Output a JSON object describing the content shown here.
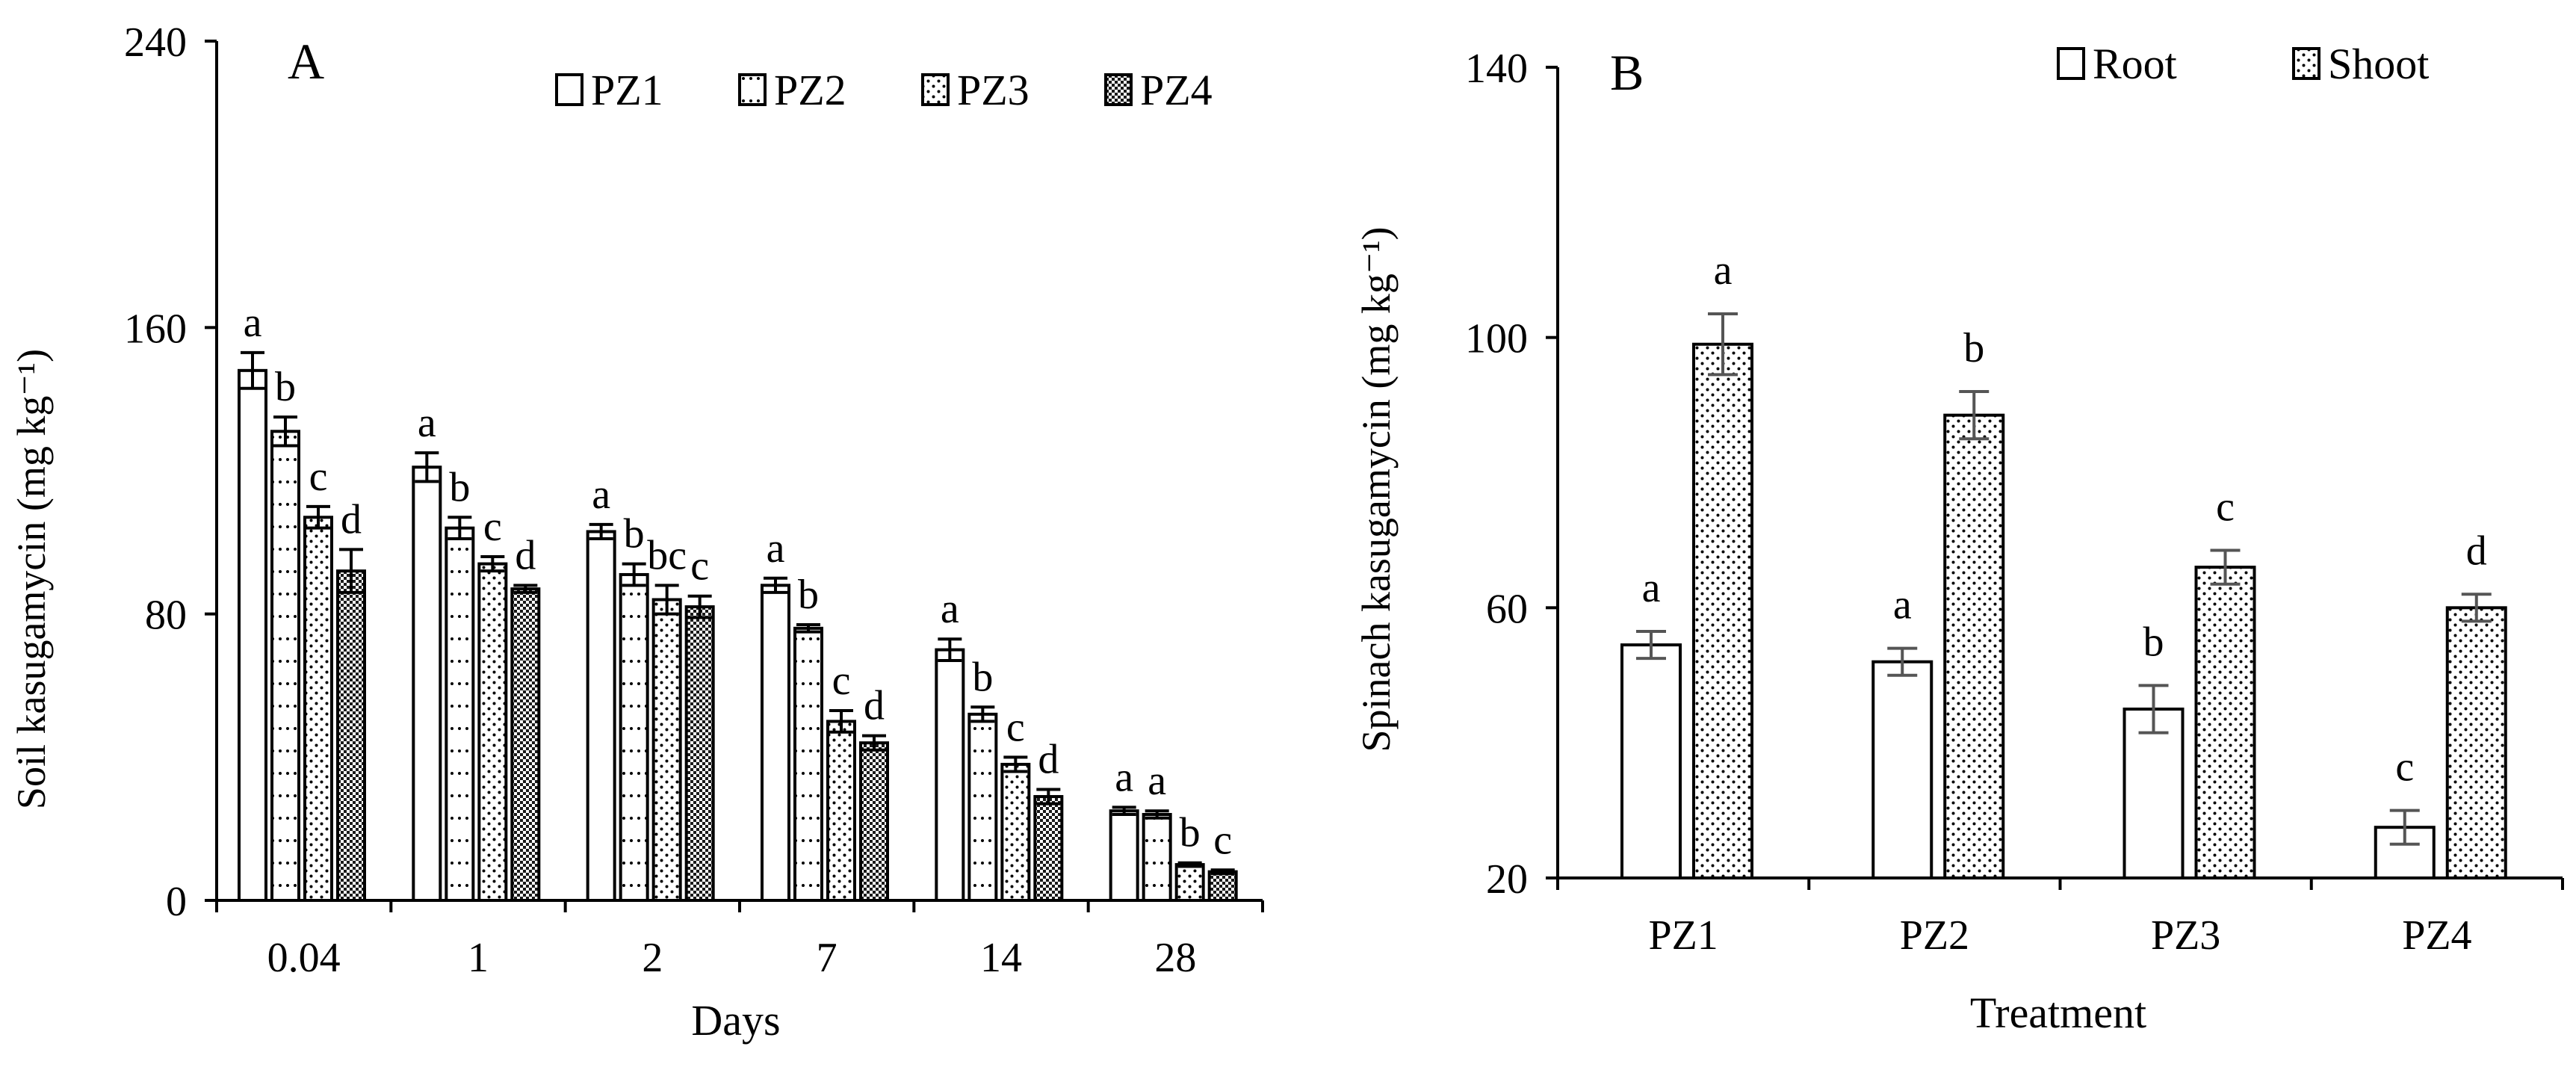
{
  "chart_data": [
    {
      "panel": "A",
      "type": "bar",
      "ylabel": "Soil kasugamycin (mg kg⁻¹)",
      "xlabel": "Days",
      "ylim": [
        0,
        240
      ],
      "yticks": [
        "0",
        "80",
        "160",
        "240"
      ],
      "categories": [
        "0.04",
        "1",
        "2",
        "7",
        "14",
        "28"
      ],
      "series": [
        {
          "name": "PZ1",
          "pattern": "white",
          "values": [
            148,
            121,
            103,
            88,
            70,
            25
          ],
          "errors": [
            5,
            4,
            2,
            2,
            3,
            1
          ],
          "letters": [
            "a",
            "a",
            "a",
            "a",
            "a",
            "a"
          ]
        },
        {
          "name": "PZ2",
          "pattern": "dots-sparse",
          "values": [
            131,
            104,
            91,
            76,
            52,
            24
          ],
          "errors": [
            4,
            3,
            3,
            1,
            2,
            1
          ],
          "letters": [
            "b",
            "b",
            "b",
            "b",
            "b",
            "a"
          ]
        },
        {
          "name": "PZ3",
          "pattern": "dots-dense",
          "values": [
            107,
            94,
            84,
            50,
            38,
            10
          ],
          "errors": [
            3,
            2,
            4,
            3,
            2,
            0.5
          ],
          "letters": [
            "c",
            "c",
            "bc",
            "c",
            "c",
            "b"
          ]
        },
        {
          "name": "PZ4",
          "pattern": "checker",
          "values": [
            92,
            87,
            82,
            44,
            29,
            8
          ],
          "errors": [
            6,
            1,
            3,
            2,
            2,
            0.5
          ],
          "letters": [
            "d",
            "d",
            "c",
            "d",
            "d",
            "c"
          ]
        }
      ],
      "legend_placement": "top-right",
      "grid": false
    },
    {
      "panel": "B",
      "type": "bar",
      "ylabel": "Spinach kasugamycin (mg kg⁻¹)",
      "xlabel": "Treatment",
      "ylim": [
        20,
        140
      ],
      "yticks": [
        "20",
        "60",
        "100",
        "140"
      ],
      "categories": [
        "PZ1",
        "PZ2",
        "PZ3",
        "PZ4"
      ],
      "series": [
        {
          "name": "Root",
          "pattern": "white",
          "values": [
            54.5,
            52,
            45,
            27.5
          ],
          "errors": [
            2,
            2,
            3.5,
            2.5
          ],
          "letters": [
            "a",
            "a",
            "b",
            "c"
          ]
        },
        {
          "name": "Shoot",
          "pattern": "dots-dense",
          "values": [
            99,
            88.5,
            66,
            60
          ],
          "errors": [
            4.5,
            3.5,
            2.5,
            2
          ],
          "letters": [
            "a",
            "b",
            "c",
            "d"
          ]
        }
      ],
      "legend_placement": "top-right",
      "grid": false
    }
  ]
}
